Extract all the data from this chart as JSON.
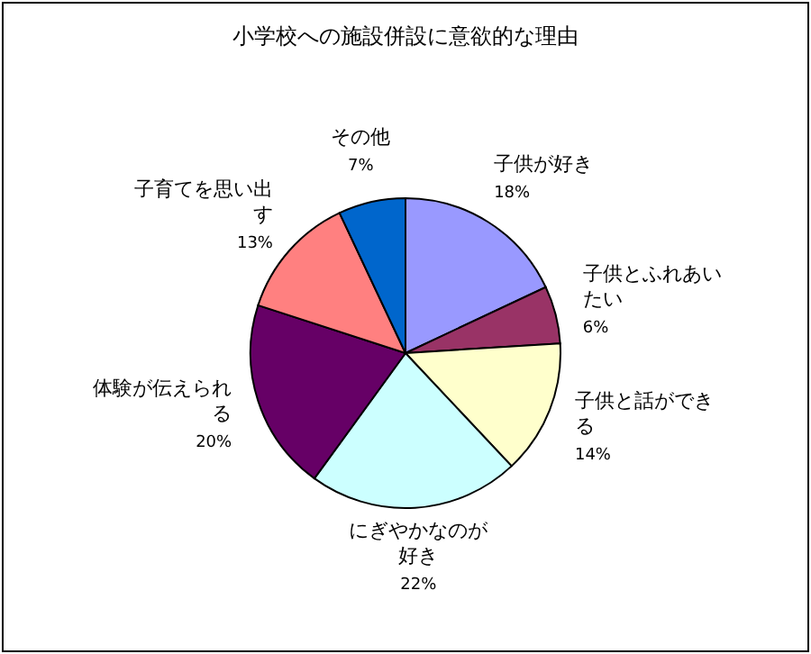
{
  "chart_data": {
    "type": "pie",
    "title": "小学校への施設併設に意欲的な理由",
    "categories": [
      "子供が好き",
      "子供とふれあいたい",
      "子供と話ができる",
      "にぎやかなのが好き",
      "体験が伝えられる",
      "子育てを思い出す",
      "その他"
    ],
    "values": [
      18,
      6,
      14,
      22,
      20,
      13,
      7
    ],
    "colors": [
      "#9999ff",
      "#993366",
      "#ffffcc",
      "#ccffff",
      "#660066",
      "#ff8080",
      "#0066cc"
    ],
    "value_labels": [
      "18%",
      "6%",
      "14%",
      "22%",
      "20%",
      "13%",
      "7%"
    ]
  }
}
